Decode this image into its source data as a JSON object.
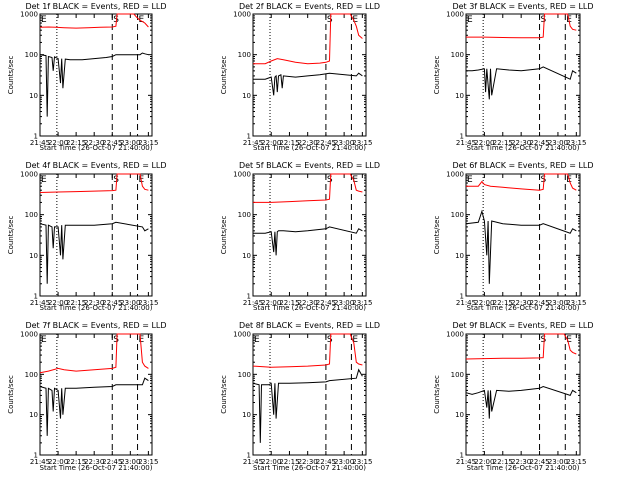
{
  "chart_data": [
    {
      "type": "line",
      "title": "Det 1f BLACK = Events, RED = LLD",
      "xlabel": "Start Time (26-Oct-07 21:40:00)",
      "ylabel": "Counts/sec",
      "yscale": "log",
      "ylim": [
        1,
        1000
      ],
      "xlim": [
        "21:45",
        "23:18"
      ],
      "yticks": [
        "1",
        "10",
        "100",
        "1000"
      ],
      "xticks": [
        "21:45",
        "22:00",
        "22:15",
        "22:30",
        "22:45",
        "23:00",
        "23:15"
      ],
      "markers": [
        "E",
        "S",
        "E"
      ],
      "grid": false,
      "series": [
        {
          "name": "LLD",
          "color": "#ff0000",
          "x": [
            "21:45",
            "21:52",
            "21:58",
            "22:05",
            "22:15",
            "22:25",
            "22:35",
            "22:45",
            "22:48",
            "22:49",
            "22:53",
            "23:00",
            "23:03",
            "23:05",
            "23:08",
            "23:10",
            "23:12",
            "23:15"
          ],
          "y": [
            470,
            480,
            470,
            460,
            450,
            460,
            470,
            480,
            500,
            1000,
            1000,
            1000,
            1000,
            850,
            700,
            650,
            600,
            480
          ]
        },
        {
          "name": "Events",
          "color": "#000000",
          "x": [
            "21:45",
            "21:50",
            "21:51",
            "21:52",
            "21:55",
            "21:56",
            "21:57",
            "21:58",
            "22:00",
            "22:02",
            "22:03",
            "22:04",
            "22:06",
            "22:10",
            "22:20",
            "22:30",
            "22:40",
            "22:45",
            "22:48",
            "23:08",
            "23:10",
            "23:12",
            "23:15"
          ],
          "y": [
            100,
            95,
            3,
            90,
            85,
            40,
            88,
            85,
            80,
            20,
            80,
            15,
            78,
            75,
            75,
            80,
            85,
            90,
            100,
            100,
            110,
            105,
            100
          ]
        }
      ]
    },
    {
      "type": "line",
      "title": "Det 2f BLACK = Events, RED = LLD",
      "xlabel": "Start Time (26-Oct-07 21:40:00)",
      "ylabel": "Counts/sec",
      "yscale": "log",
      "ylim": [
        1,
        1000
      ],
      "xlim": [
        "21:45",
        "23:18"
      ],
      "yticks": [
        "1",
        "10",
        "100",
        "1000"
      ],
      "xticks": [
        "21:45",
        "22:00",
        "22:15",
        "22:30",
        "22:45",
        "23:00",
        "23:15"
      ],
      "markers": [
        "S",
        "E"
      ],
      "grid": false,
      "series": [
        {
          "name": "LLD",
          "color": "#ff0000",
          "x": [
            "21:45",
            "21:55",
            "22:00",
            "22:05",
            "22:10",
            "22:20",
            "22:30",
            "22:40",
            "22:45",
            "22:48",
            "22:49",
            "23:05",
            "23:08",
            "23:10",
            "23:12",
            "23:15"
          ],
          "y": [
            60,
            60,
            70,
            80,
            75,
            65,
            60,
            62,
            65,
            70,
            1000,
            1000,
            700,
            500,
            300,
            250
          ]
        },
        {
          "name": "Events",
          "color": "#000000",
          "x": [
            "21:45",
            "21:55",
            "22:00",
            "22:02",
            "22:03",
            "22:04",
            "22:05",
            "22:06",
            "22:08",
            "22:09",
            "22:10",
            "22:20",
            "22:30",
            "22:40",
            "22:48",
            "23:10",
            "23:12",
            "23:15"
          ],
          "y": [
            25,
            25,
            28,
            10,
            28,
            30,
            12,
            30,
            32,
            15,
            30,
            28,
            30,
            32,
            35,
            30,
            35,
            30
          ]
        }
      ]
    },
    {
      "type": "line",
      "title": "Det 3f BLACK = Events, RED = LLD",
      "xlabel": "Start Time (26-Oct-07 21:40:00)",
      "ylabel": "Counts/sec",
      "yscale": "log",
      "ylim": [
        1,
        1000
      ],
      "xlim": [
        "21:45",
        "23:18"
      ],
      "yticks": [
        "1",
        "10",
        "100",
        "1000"
      ],
      "xticks": [
        "21:45",
        "22:00",
        "22:15",
        "22:30",
        "22:45",
        "23:00",
        "23:15"
      ],
      "markers": [
        "E",
        "S",
        "E"
      ],
      "grid": false,
      "series": [
        {
          "name": "LLD",
          "color": "#ff0000",
          "x": [
            "21:45",
            "22:00",
            "22:15",
            "22:30",
            "22:45",
            "22:48",
            "22:49",
            "23:08",
            "23:10",
            "23:12",
            "23:15"
          ],
          "y": [
            270,
            270,
            265,
            260,
            260,
            270,
            1000,
            1000,
            500,
            420,
            400
          ]
        },
        {
          "name": "Events",
          "color": "#000000",
          "x": [
            "21:45",
            "21:50",
            "21:55",
            "22:00",
            "22:01",
            "22:02",
            "22:04",
            "22:05",
            "22:06",
            "22:10",
            "22:20",
            "22:30",
            "22:45",
            "22:48",
            "23:10",
            "23:12",
            "23:15"
          ],
          "y": [
            40,
            40,
            42,
            45,
            12,
            45,
            8,
            45,
            10,
            45,
            42,
            40,
            45,
            50,
            25,
            40,
            35
          ]
        }
      ]
    },
    {
      "type": "line",
      "title": "Det 4f BLACK = Events, RED = LLD",
      "xlabel": "Start Time (26-Oct-07 21:40:00)",
      "ylabel": "Counts/sec",
      "yscale": "log",
      "ylim": [
        1,
        1000
      ],
      "xlim": [
        "21:45",
        "23:18"
      ],
      "yticks": [
        "1",
        "10",
        "100",
        "1000"
      ],
      "xticks": [
        "21:45",
        "22:00",
        "22:15",
        "22:30",
        "22:45",
        "23:00",
        "23:15"
      ],
      "markers": [
        "E",
        "S",
        "E"
      ],
      "grid": false,
      "series": [
        {
          "name": "LLD",
          "color": "#ff0000",
          "x": [
            "21:45",
            "22:00",
            "22:15",
            "22:30",
            "22:45",
            "22:48",
            "22:49",
            "23:08",
            "23:10",
            "23:12",
            "23:15"
          ],
          "y": [
            350,
            360,
            370,
            380,
            390,
            400,
            1000,
            1000,
            500,
            420,
            400
          ]
        },
        {
          "name": "Events",
          "color": "#000000",
          "x": [
            "21:45",
            "21:50",
            "21:51",
            "21:52",
            "21:55",
            "21:56",
            "21:57",
            "22:00",
            "22:02",
            "22:03",
            "22:04",
            "22:06",
            "22:15",
            "22:30",
            "22:45",
            "22:48",
            "23:10",
            "23:12",
            "23:15"
          ],
          "y": [
            60,
            55,
            2,
            55,
            50,
            15,
            50,
            50,
            10,
            55,
            8,
            55,
            55,
            55,
            60,
            65,
            50,
            40,
            45
          ]
        }
      ]
    },
    {
      "type": "line",
      "title": "Det 5f BLACK = Events, RED = LLD",
      "xlabel": "Start Time (26-Oct-07 21:40:00)",
      "ylabel": "Counts/sec",
      "yscale": "log",
      "ylim": [
        1,
        1000
      ],
      "xlim": [
        "21:45",
        "23:18"
      ],
      "yticks": [
        "1",
        "10",
        "100",
        "1000"
      ],
      "xticks": [
        "21:45",
        "22:00",
        "22:15",
        "22:30",
        "22:45",
        "23:00",
        "23:15"
      ],
      "markers": [
        "S",
        "E"
      ],
      "grid": false,
      "series": [
        {
          "name": "LLD",
          "color": "#ff0000",
          "x": [
            "21:45",
            "22:00",
            "22:15",
            "22:30",
            "22:45",
            "22:48",
            "22:49",
            "23:05",
            "23:08",
            "23:10",
            "23:12",
            "23:15"
          ],
          "y": [
            200,
            200,
            210,
            220,
            230,
            240,
            1000,
            1000,
            700,
            400,
            380,
            360
          ]
        },
        {
          "name": "Events",
          "color": "#000000",
          "x": [
            "21:45",
            "21:55",
            "22:00",
            "22:02",
            "22:03",
            "22:04",
            "22:05",
            "22:06",
            "22:10",
            "22:20",
            "22:30",
            "22:45",
            "22:48",
            "23:10",
            "23:12",
            "23:15"
          ],
          "y": [
            35,
            35,
            38,
            12,
            38,
            10,
            38,
            40,
            40,
            38,
            40,
            45,
            50,
            35,
            45,
            40
          ]
        }
      ]
    },
    {
      "type": "line",
      "title": "Det 6f BLACK = Events, RED = LLD",
      "xlabel": "Start Time (26-Oct-07 21:40:00)",
      "ylabel": "Counts/sec",
      "yscale": "log",
      "ylim": [
        1,
        1000
      ],
      "xlim": [
        "21:45",
        "23:18"
      ],
      "yticks": [
        "1",
        "10",
        "100",
        "1000"
      ],
      "xticks": [
        "21:45",
        "22:00",
        "22:15",
        "22:30",
        "22:45",
        "23:00",
        "23:15"
      ],
      "markers": [
        "E",
        "S",
        "E"
      ],
      "grid": false,
      "series": [
        {
          "name": "LLD",
          "color": "#ff0000",
          "x": [
            "21:45",
            "21:55",
            "21:58",
            "22:00",
            "22:05",
            "22:15",
            "22:30",
            "22:45",
            "22:48",
            "22:49",
            "23:08",
            "23:10",
            "23:12",
            "23:15"
          ],
          "y": [
            500,
            500,
            650,
            550,
            500,
            470,
            430,
            400,
            420,
            1000,
            1000,
            600,
            450,
            400
          ]
        },
        {
          "name": "Events",
          "color": "#000000",
          "x": [
            "21:45",
            "21:55",
            "21:58",
            "22:00",
            "22:02",
            "22:03",
            "22:04",
            "22:06",
            "22:15",
            "22:30",
            "22:45",
            "22:48",
            "23:10",
            "23:12",
            "23:15"
          ],
          "y": [
            60,
            65,
            120,
            70,
            10,
            70,
            2,
            70,
            60,
            55,
            55,
            60,
            35,
            45,
            40
          ]
        }
      ]
    },
    {
      "type": "line",
      "title": "Det 7f BLACK = Events, RED = LLD",
      "xlabel": "Start Time (26-Oct-07 21:40:00)",
      "ylabel": "Counts/sec",
      "yscale": "log",
      "ylim": [
        1,
        1000
      ],
      "xlim": [
        "21:45",
        "23:18"
      ],
      "yticks": [
        "1",
        "10",
        "100",
        "1000"
      ],
      "xticks": [
        "21:45",
        "22:00",
        "22:15",
        "22:30",
        "22:45",
        "23:00",
        "23:15"
      ],
      "markers": [
        "E",
        "S",
        "E"
      ],
      "grid": false,
      "series": [
        {
          "name": "LLD",
          "color": "#ff0000",
          "x": [
            "21:45",
            "21:52",
            "22:00",
            "22:05",
            "22:15",
            "22:30",
            "22:45",
            "22:48",
            "22:49",
            "23:08",
            "23:10",
            "23:12",
            "23:15"
          ],
          "y": [
            110,
            120,
            140,
            130,
            120,
            130,
            140,
            150,
            1000,
            1000,
            200,
            160,
            140
          ]
        },
        {
          "name": "Events",
          "color": "#000000",
          "x": [
            "21:45",
            "21:50",
            "21:51",
            "21:52",
            "21:55",
            "21:56",
            "21:57",
            "22:00",
            "22:02",
            "22:03",
            "22:04",
            "22:06",
            "22:15",
            "22:30",
            "22:45",
            "22:48",
            "23:10",
            "23:12",
            "23:15"
          ],
          "y": [
            50,
            45,
            3,
            45,
            40,
            12,
            45,
            40,
            8,
            45,
            10,
            45,
            45,
            48,
            50,
            55,
            55,
            80,
            70
          ]
        }
      ]
    },
    {
      "type": "line",
      "title": "Det 8f BLACK = Events, RED = LLD",
      "xlabel": "Start Time (26-Oct-07 21:40:00)",
      "ylabel": "Counts/sec",
      "yscale": "log",
      "ylim": [
        1,
        1000
      ],
      "xlim": [
        "21:45",
        "23:18"
      ],
      "yticks": [
        "1",
        "10",
        "100",
        "1000"
      ],
      "xticks": [
        "21:45",
        "22:00",
        "22:15",
        "22:30",
        "22:45",
        "23:00",
        "23:15"
      ],
      "markers": [
        "E",
        "S",
        "E"
      ],
      "grid": false,
      "series": [
        {
          "name": "LLD",
          "color": "#ff0000",
          "x": [
            "21:45",
            "22:00",
            "22:15",
            "22:30",
            "22:45",
            "22:48",
            "22:49",
            "23:05",
            "23:08",
            "23:10",
            "23:12",
            "23:15"
          ],
          "y": [
            160,
            150,
            155,
            160,
            170,
            180,
            1000,
            1000,
            600,
            200,
            180,
            170
          ]
        },
        {
          "name": "Events",
          "color": "#000000",
          "x": [
            "21:45",
            "21:50",
            "21:51",
            "21:52",
            "21:58",
            "22:00",
            "22:02",
            "22:03",
            "22:04",
            "22:06",
            "22:15",
            "22:30",
            "22:45",
            "22:48",
            "23:10",
            "23:12",
            "23:15"
          ],
          "y": [
            60,
            55,
            2,
            55,
            55,
            60,
            10,
            60,
            8,
            60,
            60,
            62,
            65,
            70,
            80,
            130,
            90
          ]
        }
      ]
    },
    {
      "type": "line",
      "title": "Det 9f BLACK = Events, RED = LLD",
      "xlabel": "Start Time (26-Oct-07 21:40:00)",
      "ylabel": "Counts/sec",
      "yscale": "log",
      "ylim": [
        1,
        1000
      ],
      "xlim": [
        "21:45",
        "23:18"
      ],
      "yticks": [
        "1",
        "10",
        "100",
        "1000"
      ],
      "xticks": [
        "21:45",
        "22:00",
        "22:15",
        "22:30",
        "22:45",
        "23:00",
        "23:15"
      ],
      "markers": [
        "S",
        "E"
      ],
      "grid": false,
      "series": [
        {
          "name": "LLD",
          "color": "#ff0000",
          "x": [
            "21:45",
            "22:00",
            "22:15",
            "22:30",
            "22:45",
            "22:48",
            "22:49",
            "23:05",
            "23:08",
            "23:10",
            "23:12",
            "23:15"
          ],
          "y": [
            240,
            245,
            250,
            250,
            255,
            260,
            1000,
            1000,
            700,
            400,
            350,
            320
          ]
        },
        {
          "name": "Events",
          "color": "#000000",
          "x": [
            "21:45",
            "21:50",
            "21:55",
            "22:00",
            "22:02",
            "22:03",
            "22:04",
            "22:05",
            "22:06",
            "22:10",
            "22:20",
            "22:30",
            "22:45",
            "22:48",
            "23:10",
            "23:12",
            "23:15"
          ],
          "y": [
            35,
            32,
            35,
            40,
            15,
            40,
            8,
            40,
            12,
            40,
            38,
            40,
            45,
            50,
            30,
            40,
            35
          ]
        }
      ]
    }
  ]
}
